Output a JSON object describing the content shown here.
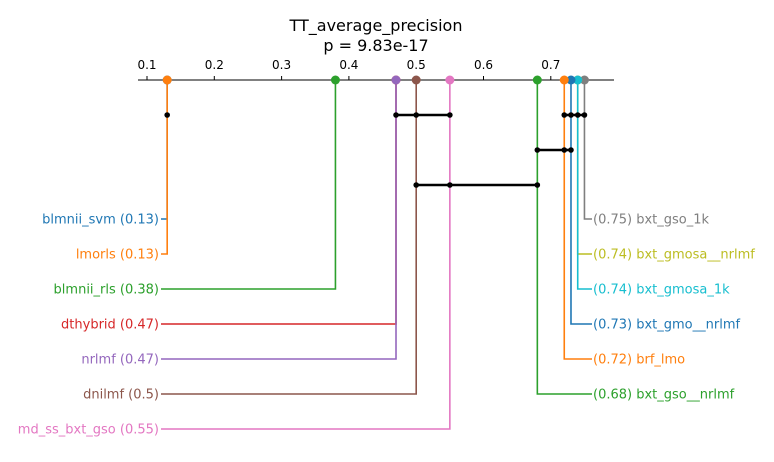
{
  "chart_data": {
    "type": "critical-difference-diagram",
    "title": "TT_average_precision",
    "subtitle": "p = 9.83e-17",
    "xlim": [
      0.09,
      0.79
    ],
    "ticks": [
      "0.1",
      "0.2",
      "0.3",
      "0.4",
      "0.5",
      "0.6",
      "0.7"
    ],
    "left_methods": [
      {
        "name": "blmnii_svm",
        "value": 0.13,
        "label": "blmnii_svm (0.13)",
        "color": "#1f77b4"
      },
      {
        "name": "lmorls",
        "value": 0.13,
        "label": "lmorls (0.13)",
        "color": "#ff7f0e"
      },
      {
        "name": "blmnii_rls",
        "value": 0.38,
        "label": "blmnii_rls (0.38)",
        "color": "#2ca02c"
      },
      {
        "name": "dthybrid",
        "value": 0.47,
        "label": "dthybrid (0.47)",
        "color": "#d62728"
      },
      {
        "name": "nrlmf",
        "value": 0.47,
        "label": "nrlmf (0.47)",
        "color": "#9467bd"
      },
      {
        "name": "dnilmf",
        "value": 0.5,
        "label": "dnilmf (0.5)",
        "color": "#8c564b"
      },
      {
        "name": "md_ss_bxt_gso",
        "value": 0.55,
        "label": "md_ss_bxt_gso (0.55)",
        "color": "#e377c2"
      }
    ],
    "right_methods": [
      {
        "name": "bxt_gso_1k",
        "value": 0.75,
        "label": "(0.75) bxt_gso_1k",
        "color": "#7f7f7f"
      },
      {
        "name": "bxt_gmosa__nrlmf",
        "value": 0.74,
        "label": "(0.74) bxt_gmosa__nrlmf",
        "color": "#bcbd22"
      },
      {
        "name": "bxt_gmosa_1k",
        "value": 0.74,
        "label": "(0.74) bxt_gmosa_1k",
        "color": "#17becf"
      },
      {
        "name": "bxt_gmo__nrlmf",
        "value": 0.73,
        "label": "(0.73) bxt_gmo__nrlmf",
        "color": "#1f77b4"
      },
      {
        "name": "brf_lmo",
        "value": 0.72,
        "label": "(0.72) brf_lmo",
        "color": "#ff7f0e"
      },
      {
        "name": "bxt_gso__nrlmf",
        "value": 0.68,
        "label": "(0.68) bxt_gso__nrlmf",
        "color": "#2ca02c"
      }
    ],
    "cliques": [
      {
        "members": [
          "blmnii_svm",
          "lmorls"
        ],
        "from": 0.13,
        "to": 0.13
      },
      {
        "members": [
          "nrlmf",
          "dnilmf",
          "md_ss_bxt_gso"
        ],
        "from": 0.47,
        "to": 0.55
      },
      {
        "members": [
          "brf_lmo",
          "bxt_gmo__nrlmf",
          "bxt_gmosa_1k",
          "bxt_gmosa__nrlmf",
          "bxt_gso_1k"
        ],
        "from": 0.72,
        "to": 0.75
      },
      {
        "members": [
          "bxt_gso__nrlmf",
          "brf_lmo",
          "bxt_gmo__nrlmf"
        ],
        "from": 0.68,
        "to": 0.73
      },
      {
        "members": [
          "dnilmf",
          "md_ss_bxt_gso",
          "bxt_gso__nrlmf"
        ],
        "from": 0.5,
        "to": 0.68
      }
    ]
  }
}
